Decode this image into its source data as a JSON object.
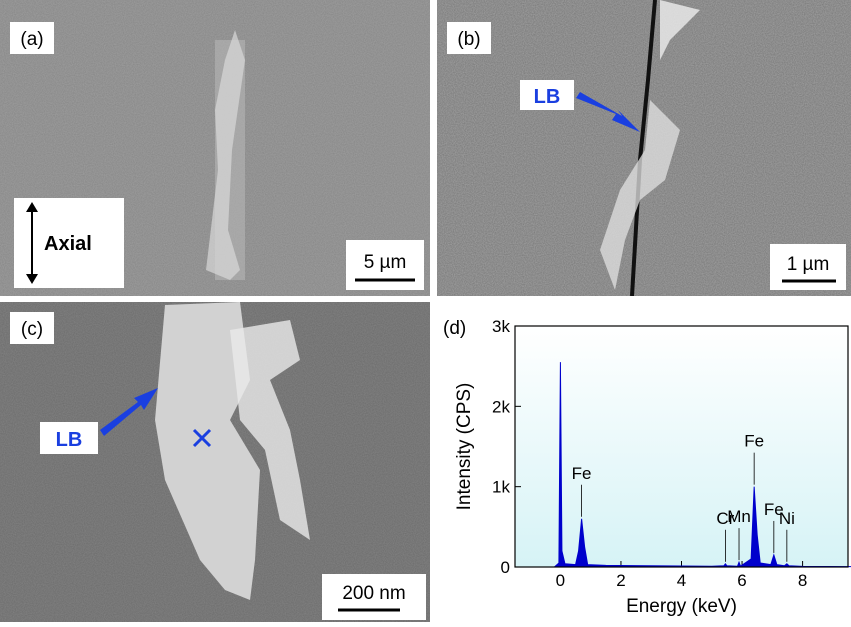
{
  "panels": [
    {
      "label": "(a)",
      "scale_bar": "5 µm",
      "annotation": "Axial"
    },
    {
      "label": "(b)",
      "scale_bar": "1 µm",
      "annotation": "LB"
    },
    {
      "label": "(c)",
      "scale_bar": "200 nm",
      "annotation": "LB"
    }
  ],
  "chart_data": {
    "type": "area",
    "label": "(d)",
    "x_label": "Energy (keV)",
    "y_label": "Intensity (CPS)",
    "x": [
      -0.2,
      -0.05,
      0,
      0.05,
      0.15,
      0.5,
      0.6,
      0.7,
      0.8,
      0.9,
      1.5,
      3,
      5,
      5.4,
      5.45,
      5.5,
      5.85,
      5.9,
      5.95,
      6.3,
      6.4,
      6.5,
      6.6,
      6.95,
      7.05,
      7.15,
      7.4,
      7.48,
      7.55,
      8,
      9.6
    ],
    "values": [
      0,
      50,
      2550,
      200,
      40,
      30,
      200,
      600,
      250,
      30,
      20,
      15,
      10,
      15,
      40,
      15,
      10,
      60,
      10,
      100,
      1000,
      400,
      50,
      30,
      150,
      30,
      15,
      40,
      15,
      8,
      5
    ],
    "color": "#0000cc",
    "xlim": [
      -1.5,
      9.5
    ],
    "ylim": [
      0,
      3000
    ],
    "xticks": [
      0,
      2,
      4,
      6,
      8
    ],
    "yticks": [
      0,
      {
        "value": 1000,
        "label": "1k"
      },
      {
        "value": 2000,
        "label": "2k"
      },
      {
        "value": 3000,
        "label": "3k"
      }
    ],
    "annotations": [
      {
        "text": "Fe",
        "x": 0.7
      },
      {
        "text": "Cr",
        "x": 5.45
      },
      {
        "text": "Mn",
        "x": 5.9
      },
      {
        "text": "Fe",
        "x": 6.4
      },
      {
        "text": "Fe",
        "x": 7.05
      },
      {
        "text": "Ni",
        "x": 7.48
      }
    ]
  }
}
